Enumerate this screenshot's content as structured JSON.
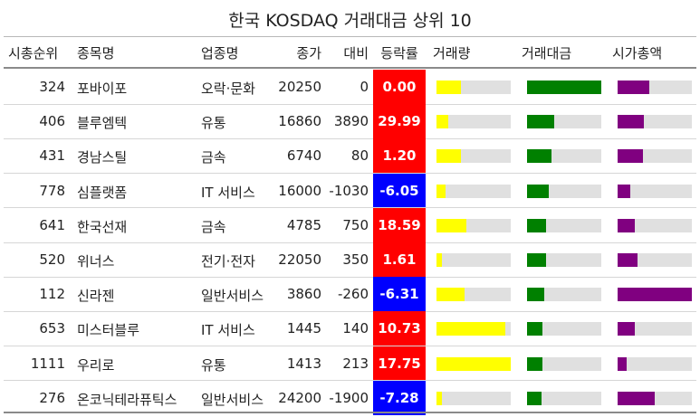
{
  "title": "한국 KOSDAQ 거래대금 상위 10",
  "headers": {
    "rank": "시총순위",
    "name": "종목명",
    "sector": "업종명",
    "close": "종가",
    "change": "대비",
    "rate": "등락률",
    "volume": "거래량",
    "value": "거래대금",
    "cap": "시가총액"
  },
  "colors": {
    "up": "#ff0000",
    "down": "#0000ff",
    "volume_bar": "#ffff00",
    "value_bar": "#008000",
    "cap_bar": "#800080",
    "track": "#e0e0e0"
  },
  "chart_data": {
    "type": "table",
    "title": "한국 KOSDAQ 거래대금 상위 10",
    "rows": [
      {
        "rank": "324",
        "name": "포바이포",
        "sector": "오락·문화",
        "close": "20250",
        "change": "0",
        "rate": "0.00",
        "sign": "up",
        "volume_ratio": 0.33,
        "value_ratio": 1.0,
        "cap_ratio": 0.43
      },
      {
        "rank": "406",
        "name": "블루엠텍",
        "sector": "유통",
        "close": "16860",
        "change": "3890",
        "rate": "29.99",
        "sign": "up",
        "volume_ratio": 0.16,
        "value_ratio": 0.36,
        "cap_ratio": 0.35
      },
      {
        "rank": "431",
        "name": "경남스틸",
        "sector": "금속",
        "close": "6740",
        "change": "80",
        "rate": "1.20",
        "sign": "up",
        "volume_ratio": 0.33,
        "value_ratio": 0.33,
        "cap_ratio": 0.34
      },
      {
        "rank": "778",
        "name": "심플랫폼",
        "sector": "IT 서비스",
        "close": "16000",
        "change": "-1030",
        "rate": "-6.05",
        "sign": "down",
        "volume_ratio": 0.12,
        "value_ratio": 0.29,
        "cap_ratio": 0.17
      },
      {
        "rank": "641",
        "name": "한국선재",
        "sector": "금속",
        "close": "4785",
        "change": "750",
        "rate": "18.59",
        "sign": "up",
        "volume_ratio": 0.4,
        "value_ratio": 0.26,
        "cap_ratio": 0.23
      },
      {
        "rank": "520",
        "name": "위너스",
        "sector": "전기·전자",
        "close": "22050",
        "change": "350",
        "rate": "1.61",
        "sign": "up",
        "volume_ratio": 0.07,
        "value_ratio": 0.26,
        "cap_ratio": 0.27
      },
      {
        "rank": "112",
        "name": "신라젠",
        "sector": "일반서비스",
        "close": "3860",
        "change": "-260",
        "rate": "-6.31",
        "sign": "down",
        "volume_ratio": 0.38,
        "value_ratio": 0.23,
        "cap_ratio": 1.0
      },
      {
        "rank": "653",
        "name": "미스터블루",
        "sector": "IT 서비스",
        "close": "1445",
        "change": "140",
        "rate": "10.73",
        "sign": "up",
        "volume_ratio": 0.93,
        "value_ratio": 0.21,
        "cap_ratio": 0.23
      },
      {
        "rank": "1111",
        "name": "우리로",
        "sector": "유통",
        "close": "1413",
        "change": "213",
        "rate": "17.75",
        "sign": "up",
        "volume_ratio": 1.0,
        "value_ratio": 0.21,
        "cap_ratio": 0.12
      },
      {
        "rank": "276",
        "name": "온코닉테라퓨틱스",
        "sector": "일반서비스",
        "close": "24200",
        "change": "-1900",
        "rate": "-7.28",
        "sign": "down",
        "volume_ratio": 0.07,
        "value_ratio": 0.19,
        "cap_ratio": 0.5
      }
    ]
  }
}
